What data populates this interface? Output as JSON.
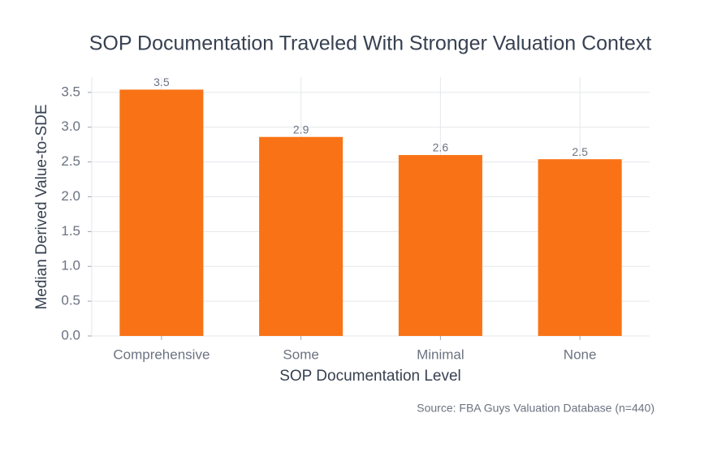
{
  "chart_data": {
    "type": "bar",
    "title": "SOP Documentation Traveled With Stronger Valuation Context",
    "xlabel": "SOP Documentation Level",
    "ylabel": "Median Derived Value-to-SDE",
    "source": "Source: FBA Guys Valuation Database (n=440)",
    "categories": [
      "Comprehensive",
      "Some",
      "Minimal",
      "None"
    ],
    "values": [
      3.54,
      2.86,
      2.6,
      2.54
    ],
    "value_labels": [
      "3.5",
      "2.9",
      "2.6",
      "2.5"
    ],
    "color": "#f97316",
    "ylim": [
      0,
      3.72
    ],
    "yticks": [
      {
        "value": 0,
        "label": "0.0"
      },
      0.5,
      {
        "value": 1,
        "label": "1.0"
      },
      1.5,
      {
        "value": 2,
        "label": "2.0"
      },
      2.5,
      {
        "value": 3,
        "label": "3.0"
      },
      3.5
    ],
    "grid": true
  }
}
